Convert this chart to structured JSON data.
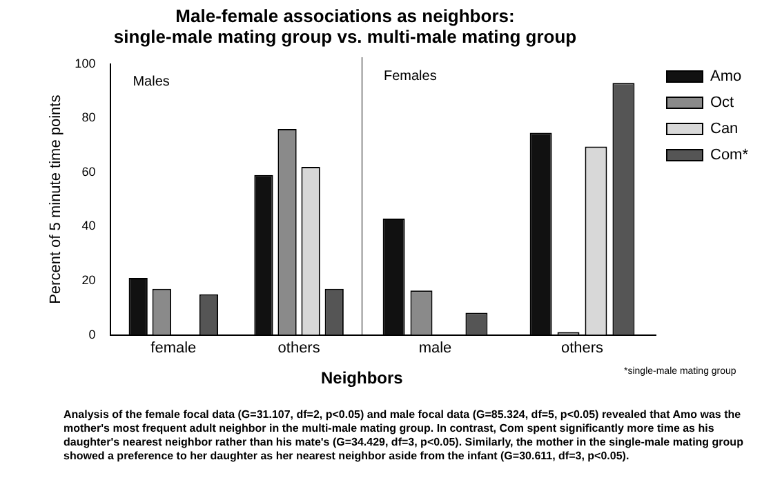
{
  "chart_data": [
    {
      "type": "bar",
      "title": "Male-female associations as neighbors:\nsingle-male mating group vs. multi-male mating group",
      "xlabel": "Neighbors",
      "ylabel": "Percent of 5 minute time points",
      "categories": [
        "female",
        "others"
      ],
      "series": [
        {
          "color": "#111111",
          "values": [
            21,
            59
          ]
        },
        {
          "color": "#8a8a8a",
          "values": [
            17,
            76
          ]
        },
        {
          "color": "#d8d8d8",
          "values": [
            0,
            62
          ]
        },
        {
          "color": "#555555",
          "values": [
            15,
            17
          ]
        }
      ],
      "ylim": [
        0,
        100
      ],
      "yticks": [
        0,
        20,
        40,
        60,
        80,
        100
      ],
      "grid": false,
      "annotations": [
        "Males",
        "Analysis of the female focal data (G=31.107, df=2, p<0.05) and male focal data (G=85.324, df=5, p<0.05) revealed that Amo was the mother's most frequent adult neighbor in the multi-male mating group.  In contrast, Com spent significantly more time as his daughter's nearest neighbor rather than his mate's (G=34.429, df=3, p<0.05). Similarly, the mother in the single-male mating group showed a preference to her daughter as her nearest neighbor aside from the infant (G=30.611, df=3, p<0.05)."
      ]
    },
    {
      "type": "bar",
      "categories": [
        "male",
        "others"
      ],
      "series": [
        {
          "name": "Amo",
          "color": "#111111",
          "values": [
            42,
            73
          ]
        },
        {
          "name": "Oct",
          "color": "#8a8a8a",
          "values": [
            16,
            1
          ]
        },
        {
          "name": "Can",
          "color": "#d8d8d8",
          "values": [
            0,
            68
          ]
        },
        {
          "name": "Com*",
          "color": "#555555",
          "values": [
            8,
            91
          ]
        }
      ],
      "ylim": [
        0,
        100
      ],
      "tick_labels": "x",
      "grid": false,
      "legend": "right",
      "annotations": [
        "Females",
        "*single-male mating group"
      ]
    }
  ]
}
